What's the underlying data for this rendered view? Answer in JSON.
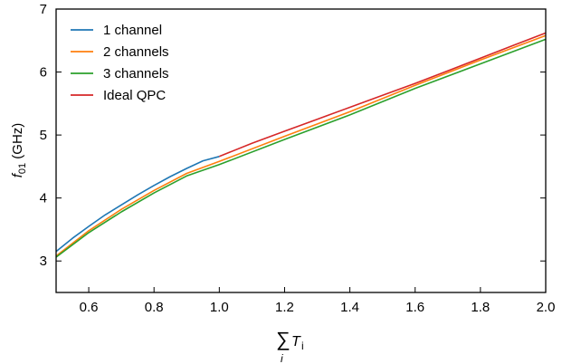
{
  "chart_data": {
    "type": "line",
    "xlabel": {
      "symbol": "∑",
      "sub": "i",
      "main": "T",
      "main_sub": "i"
    },
    "ylabel": {
      "main": "f",
      "sub": "01",
      "unit": " (GHz)"
    },
    "xlim": [
      0.5,
      2.0
    ],
    "ylim": [
      2.5,
      7.0
    ],
    "x_ticks": [
      0.6,
      0.8,
      1.0,
      1.2,
      1.4,
      1.6,
      1.8,
      2.0
    ],
    "x_tick_labels": [
      "0.6",
      "0.8",
      "1.0",
      "1.2",
      "1.4",
      "1.6",
      "1.8",
      "2.0"
    ],
    "y_ticks": [
      3,
      4,
      5,
      6,
      7
    ],
    "y_tick_labels": [
      "3",
      "4",
      "5",
      "6",
      "7"
    ],
    "grid": false,
    "legend": "top-left",
    "series": [
      {
        "name": "1 channel",
        "color": "#1f77b4",
        "x": [
          0.5,
          0.55,
          0.6,
          0.65,
          0.7,
          0.75,
          0.8,
          0.85,
          0.9,
          0.95,
          1.0
        ],
        "y": [
          3.15,
          3.36,
          3.55,
          3.73,
          3.89,
          4.05,
          4.2,
          4.34,
          4.47,
          4.59,
          4.66
        ]
      },
      {
        "name": "2 channels",
        "color": "#ff7f0e",
        "x": [
          0.5,
          0.6,
          0.7,
          0.8,
          0.9,
          1.0,
          1.2,
          1.4,
          1.6,
          1.8,
          2.0
        ],
        "y": [
          3.08,
          3.48,
          3.82,
          4.12,
          4.39,
          4.58,
          4.98,
          5.37,
          5.79,
          6.19,
          6.58
        ]
      },
      {
        "name": "3 channels",
        "color": "#2ca02c",
        "x": [
          0.5,
          0.6,
          0.7,
          0.8,
          0.9,
          1.0,
          1.2,
          1.4,
          1.6,
          1.8,
          2.0
        ],
        "y": [
          3.06,
          3.45,
          3.78,
          4.08,
          4.35,
          4.53,
          4.93,
          5.32,
          5.74,
          6.13,
          6.52
        ]
      },
      {
        "name": "Ideal QPC",
        "color": "#d62728",
        "x": [
          1.0,
          1.1,
          1.2,
          1.3,
          1.4,
          1.5,
          1.6,
          1.7,
          1.8,
          1.9,
          2.0
        ],
        "y": [
          4.66,
          4.87,
          5.06,
          5.25,
          5.44,
          5.63,
          5.82,
          6.02,
          6.22,
          6.42,
          6.62
        ]
      }
    ]
  }
}
